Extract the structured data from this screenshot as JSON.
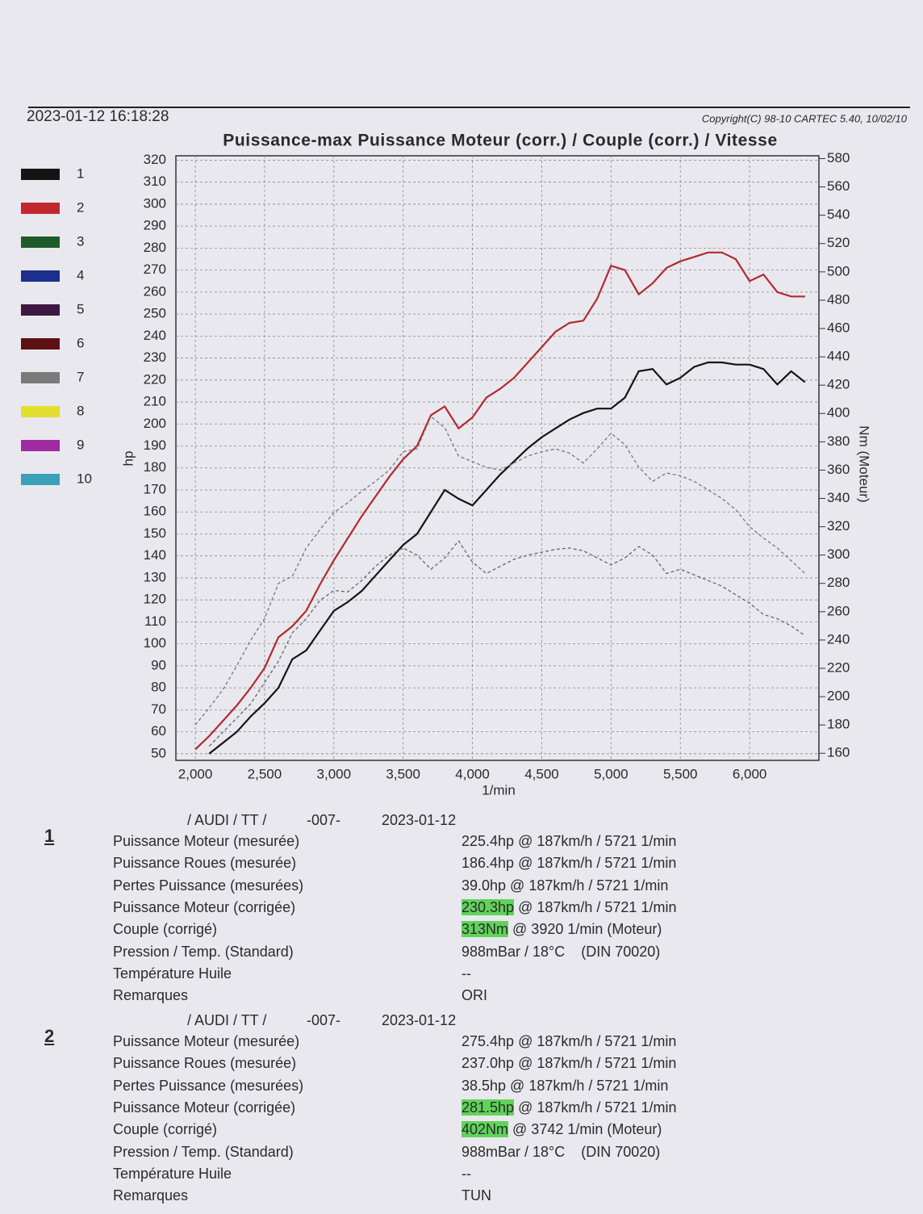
{
  "header": {
    "datetime": "2023-01-12 16:18:28",
    "copyright": "Copyright(C) 98-10 CARTEC 5.40, 10/02/10"
  },
  "chart_data": {
    "type": "line",
    "title": "Puissance-max Puissance Moteur (corr.) / Couple (corr.) / Vitesse",
    "x_label": "1/min",
    "y_label": "hp",
    "y2_label": "Nm (Moteur)",
    "xlim": [
      1860,
      6500
    ],
    "xticks": [
      {
        "value": 2000,
        "label": "2,000"
      },
      {
        "value": 2500,
        "label": "2,500"
      },
      {
        "value": 3000,
        "label": "3,000"
      },
      {
        "value": 3500,
        "label": "3,500"
      },
      {
        "value": 4000,
        "label": "4,000"
      },
      {
        "value": 4500,
        "label": "4,500"
      },
      {
        "value": 5000,
        "label": "5,000"
      },
      {
        "value": 5500,
        "label": "5,500"
      },
      {
        "value": 6000,
        "label": "6,000"
      }
    ],
    "ylim": [
      47,
      322
    ],
    "yticks": [
      50,
      60,
      70,
      80,
      90,
      100,
      110,
      120,
      130,
      140,
      150,
      160,
      170,
      180,
      190,
      200,
      210,
      220,
      230,
      240,
      250,
      260,
      270,
      280,
      290,
      300,
      310,
      320
    ],
    "y2lim": [
      155,
      582
    ],
    "y2ticks": [
      160,
      180,
      200,
      220,
      240,
      260,
      280,
      300,
      320,
      340,
      360,
      380,
      400,
      420,
      440,
      460,
      480,
      500,
      520,
      540,
      560,
      580
    ],
    "grid": true,
    "legend": [
      {
        "name": "1",
        "color": "#141414"
      },
      {
        "name": "2",
        "color": "#c0282e"
      },
      {
        "name": "3",
        "color": "#1f5a2a"
      },
      {
        "name": "4",
        "color": "#1c2f8c"
      },
      {
        "name": "5",
        "color": "#3c1842"
      },
      {
        "name": "6",
        "color": "#5c1013"
      },
      {
        "name": "7",
        "color": "#7a7a7a"
      },
      {
        "name": "8",
        "color": "#e2df2e"
      },
      {
        "name": "9",
        "color": "#a02aa0"
      },
      {
        "name": "10",
        "color": "#3ba0b8"
      }
    ],
    "x": [
      2000,
      2100,
      2200,
      2300,
      2400,
      2500,
      2600,
      2700,
      2800,
      2900,
      3000,
      3100,
      3200,
      3300,
      3400,
      3500,
      3600,
      3700,
      3800,
      3900,
      4000,
      4100,
      4200,
      4300,
      4400,
      4500,
      4600,
      4700,
      4800,
      4900,
      5000,
      5100,
      5200,
      5300,
      5400,
      5500,
      5600,
      5700,
      5800,
      5900,
      6000,
      6100,
      6200,
      6300,
      6400
    ],
    "series": [
      {
        "color": "#141414",
        "dash": false,
        "values": [
          null,
          50,
          55,
          60,
          67,
          73,
          80,
          93,
          97,
          106,
          115,
          119,
          124,
          131,
          138,
          145,
          150,
          160,
          170,
          166,
          163,
          170,
          177,
          183,
          189,
          194,
          198,
          202,
          205,
          207,
          207,
          212,
          224,
          225,
          218,
          221,
          226,
          228,
          228,
          227,
          227,
          225,
          218,
          224,
          219
        ]
      },
      {
        "color": "#b02a34",
        "dash": false,
        "values": [
          52,
          58,
          65,
          72,
          80,
          89,
          103,
          108,
          115,
          127,
          138,
          148,
          158,
          167,
          176,
          184,
          190,
          204,
          208,
          198,
          203,
          212,
          216,
          221,
          228,
          235,
          242,
          246,
          247,
          257,
          272,
          270,
          259,
          264,
          271,
          274,
          276,
          278,
          278,
          275,
          265,
          268,
          260,
          258,
          258
        ]
      },
      {
        "color": "#666666",
        "dash": true,
        "axis": "y2",
        "values": [
          null,
          165,
          175,
          185,
          195,
          210,
          225,
          245,
          255,
          268,
          275,
          274,
          282,
          292,
          300,
          305,
          300,
          290,
          298,
          310,
          295,
          287,
          292,
          297,
          300,
          302,
          304,
          305,
          303,
          298,
          293,
          298,
          306,
          300,
          287,
          290,
          286,
          282,
          278,
          272,
          266,
          258,
          255,
          250,
          243
        ]
      },
      {
        "color": "#777777",
        "dash": true,
        "axis": "y2",
        "values": [
          180,
          192,
          205,
          222,
          240,
          255,
          280,
          285,
          305,
          318,
          330,
          337,
          345,
          352,
          360,
          373,
          375,
          398,
          390,
          370,
          366,
          362,
          360,
          365,
          370,
          373,
          375,
          372,
          365,
          375,
          386,
          378,
          362,
          352,
          358,
          356,
          352,
          346,
          340,
          332,
          320,
          312,
          305,
          296,
          287
        ]
      }
    ]
  },
  "runs": [
    {
      "number": "1",
      "heading": [
        "/ AUDI / TT /",
        "-007-",
        "2023-01-12"
      ],
      "rows": [
        {
          "label": "Puissance Moteur (mesurée)",
          "value": "225.4hp @ 187km/h / 5721 1/min"
        },
        {
          "label": "Puissance Roues (mesurée)",
          "value": "186.4hp @ 187km/h / 5721 1/min"
        },
        {
          "label": "Pertes Puissance (mesurées)",
          "value": "39.0hp @ 187km/h / 5721 1/min"
        },
        {
          "label": "Puissance Moteur (corrigée)",
          "highlight": "230.3hp",
          "value": " @ 187km/h / 5721 1/min"
        },
        {
          "label": "Couple (corrigé)",
          "highlight": "313Nm",
          "value": " @ 3920 1/min (Moteur)"
        },
        {
          "label": "Pression / Temp. (Standard)",
          "value": "988mBar / 18°C    (DIN 70020)"
        },
        {
          "label": "Température Huile",
          "value": "--"
        },
        {
          "label": "Remarques",
          "value": "ORI"
        }
      ]
    },
    {
      "number": "2",
      "heading": [
        "/ AUDI / TT /",
        "-007-",
        "2023-01-12"
      ],
      "rows": [
        {
          "label": "Puissance Moteur (mesurée)",
          "value": "275.4hp @ 187km/h / 5721 1/min"
        },
        {
          "label": "Puissance Roues (mesurée)",
          "value": "237.0hp @ 187km/h / 5721 1/min"
        },
        {
          "label": "Pertes Puissance (mesurées)",
          "value": "38.5hp @ 187km/h / 5721 1/min"
        },
        {
          "label": "Puissance Moteur (corrigée)",
          "highlight": "281.5hp",
          "value": " @ 187km/h / 5721 1/min"
        },
        {
          "label": "Couple (corrigé)",
          "highlight": "402Nm",
          "value": " @ 3742 1/min (Moteur)"
        },
        {
          "label": "Pression / Temp. (Standard)",
          "value": "988mBar / 18°C    (DIN 70020)"
        },
        {
          "label": "Température Huile",
          "value": "--"
        },
        {
          "label": "Remarques",
          "value": "TUN"
        }
      ]
    }
  ]
}
